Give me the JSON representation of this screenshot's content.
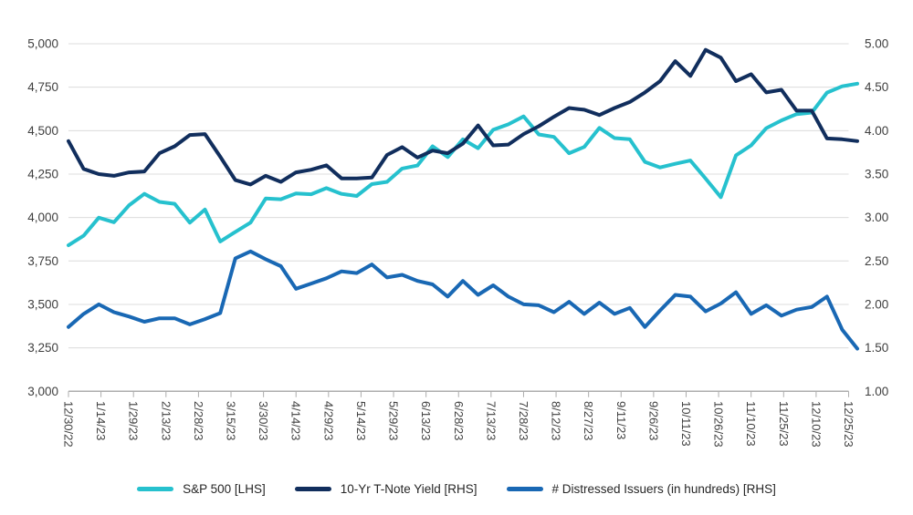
{
  "chart_data": {
    "type": "line",
    "title": "",
    "grid": true,
    "legend_position": "bottom",
    "x_tick_labels": [
      "12/30/22",
      "1/14/23",
      "1/29/23",
      "2/13/23",
      "2/28/23",
      "3/15/23",
      "3/30/23",
      "4/14/23",
      "4/29/23",
      "5/14/23",
      "5/29/23",
      "6/13/23",
      "6/28/23",
      "7/13/23",
      "7/28/23",
      "8/12/23",
      "8/27/23",
      "9/11/23",
      "9/26/23",
      "10/11/23",
      "10/26/23",
      "11/10/23",
      "11/25/23",
      "12/10/23",
      "12/25/23"
    ],
    "x_tick_interval_days": 15,
    "x_dates": [
      "12/30/22",
      "1/6/23",
      "1/13/23",
      "1/20/23",
      "1/27/23",
      "2/3/23",
      "2/10/23",
      "2/17/23",
      "2/24/23",
      "3/3/23",
      "3/10/23",
      "3/17/23",
      "3/24/23",
      "3/31/23",
      "4/7/23",
      "4/14/23",
      "4/21/23",
      "4/28/23",
      "5/5/23",
      "5/12/23",
      "5/19/23",
      "5/26/23",
      "6/2/23",
      "6/9/23",
      "6/16/23",
      "6/23/23",
      "6/30/23",
      "7/7/23",
      "7/14/23",
      "7/21/23",
      "7/28/23",
      "8/4/23",
      "8/11/23",
      "8/18/23",
      "8/25/23",
      "9/1/23",
      "9/8/23",
      "9/15/23",
      "9/22/23",
      "9/29/23",
      "10/6/23",
      "10/13/23",
      "10/20/23",
      "10/27/23",
      "11/3/23",
      "11/10/23",
      "11/17/23",
      "11/24/23",
      "12/1/23",
      "12/8/23",
      "12/15/23",
      "12/22/23",
      "12/29/23"
    ],
    "left_axis": {
      "min": 3000,
      "max": 5000,
      "tick_labels": [
        "3,000",
        "3,250",
        "3,500",
        "3,750",
        "4,000",
        "4,250",
        "4,500",
        "4,750",
        "5,000"
      ]
    },
    "right_axis": {
      "min": 1.0,
      "max": 5.0,
      "tick_labels": [
        "1.00",
        "1.50",
        "2.00",
        "2.50",
        "3.00",
        "3.50",
        "4.00",
        "4.50",
        "5.00"
      ]
    },
    "series": [
      {
        "name": "S&P 500 [LHS]",
        "axis": "left",
        "color": "#26c1ce",
        "values": [
          3840,
          3895,
          3999,
          3973,
          4071,
          4136,
          4090,
          4079,
          3970,
          4046,
          3862,
          3917,
          3971,
          4109,
          4105,
          4138,
          4134,
          4169,
          4136,
          4124,
          4192,
          4205,
          4282,
          4299,
          4410,
          4348,
          4450,
          4399,
          4505,
          4536,
          4582,
          4478,
          4464,
          4370,
          4406,
          4516,
          4457,
          4450,
          4320,
          4288,
          4309,
          4328,
          4224,
          4117,
          4358,
          4415,
          4514,
          4559,
          4595,
          4604,
          4719,
          4755,
          4770
        ]
      },
      {
        "name": "10-Yr T-Note Yield [RHS]",
        "axis": "right",
        "color": "#112e5d",
        "values": [
          3.88,
          3.56,
          3.5,
          3.48,
          3.52,
          3.53,
          3.74,
          3.82,
          3.95,
          3.96,
          3.7,
          3.43,
          3.38,
          3.48,
          3.41,
          3.52,
          3.55,
          3.6,
          3.45,
          3.45,
          3.46,
          3.72,
          3.81,
          3.69,
          3.77,
          3.74,
          3.85,
          4.06,
          3.83,
          3.84,
          3.96,
          4.05,
          4.16,
          4.26,
          4.24,
          4.18,
          4.26,
          4.33,
          4.44,
          4.57,
          4.8,
          4.63,
          4.93,
          4.84,
          4.57,
          4.65,
          4.44,
          4.47,
          4.23,
          4.23,
          3.91,
          3.9,
          3.88
        ]
      },
      {
        "name": "# Distressed Issuers (in hundreds) [RHS]",
        "axis": "right",
        "color": "#1968b4",
        "values": [
          1.74,
          1.89,
          2.0,
          1.91,
          1.86,
          1.8,
          1.84,
          1.84,
          1.77,
          1.83,
          1.9,
          2.53,
          2.61,
          2.52,
          2.44,
          2.18,
          2.24,
          2.3,
          2.38,
          2.36,
          2.46,
          2.31,
          2.34,
          2.27,
          2.23,
          2.09,
          2.27,
          2.11,
          2.22,
          2.09,
          2.0,
          1.99,
          1.91,
          2.03,
          1.89,
          2.02,
          1.89,
          1.96,
          1.74,
          1.93,
          2.11,
          2.09,
          1.92,
          2.01,
          2.14,
          1.89,
          1.99,
          1.87,
          1.94,
          1.97,
          2.09,
          1.71,
          1.49
        ]
      }
    ]
  },
  "style": {
    "gridline_color": "#dcdcdc",
    "axis_line_color": "#adadad",
    "tick_color": "#adadad",
    "background": "#ffffff",
    "line_width": 4
  }
}
